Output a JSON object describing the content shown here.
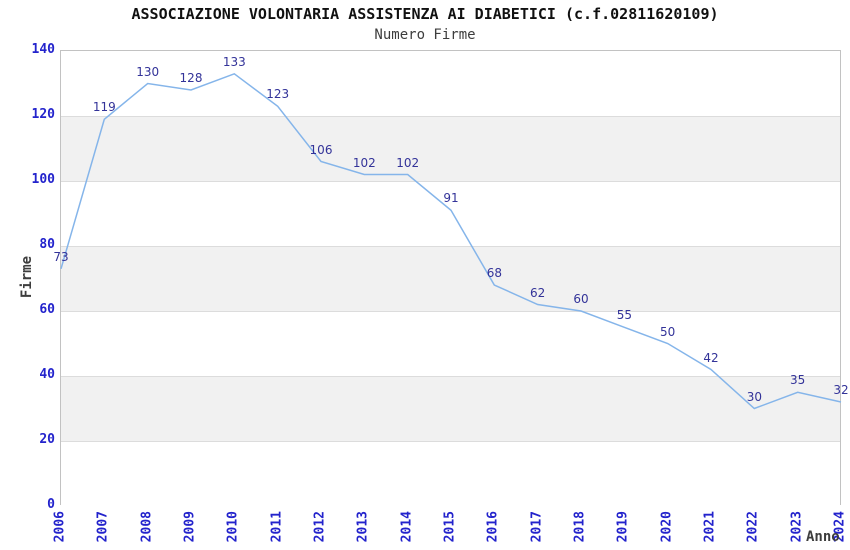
{
  "chart_data": {
    "type": "line",
    "title": "ASSOCIAZIONE VOLONTARIA ASSISTENZA AI DIABETICI (c.f.02811620109)",
    "subtitle": "Numero Firme",
    "xlabel": "Anno",
    "ylabel": "Firme",
    "categories": [
      "2006",
      "2007",
      "2008",
      "2009",
      "2010",
      "2011",
      "2012",
      "2013",
      "2014",
      "2015",
      "2016",
      "2017",
      "2018",
      "2019",
      "2020",
      "2021",
      "2022",
      "2023",
      "2024"
    ],
    "values": [
      73,
      119,
      130,
      128,
      133,
      123,
      106,
      102,
      102,
      91,
      68,
      62,
      60,
      55,
      50,
      42,
      30,
      35,
      32
    ],
    "ylim": [
      0,
      140
    ],
    "ytick_step": 20,
    "grid": true,
    "legend": "none",
    "colors": {
      "line": "#85b5ea",
      "value_label": "#333399",
      "tick_label": "#2323cc",
      "band_even": "#ffffff",
      "band_odd": "#f1f1f1",
      "gridline": "#dcdcdc",
      "plot_border": "#c2c2c2",
      "title": "#111111",
      "axis_title": "#3d3d3d"
    }
  }
}
